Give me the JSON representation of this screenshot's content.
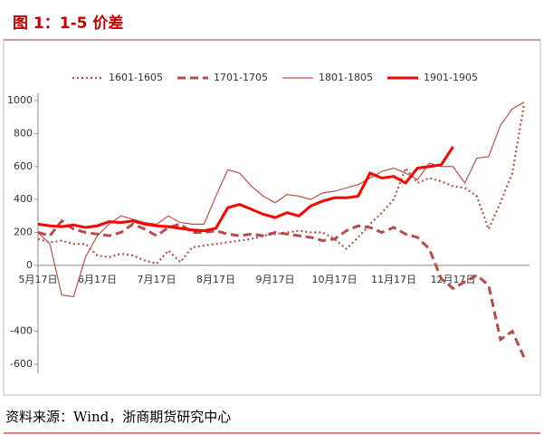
{
  "chart_data": {
    "type": "line",
    "title": "图 1：1-5 价差",
    "source": "资料来源：Wind，浙商期货研究中心",
    "categories": [
      "5月17日",
      null,
      null,
      null,
      null,
      "6月17日",
      null,
      null,
      null,
      null,
      "7月17日",
      null,
      null,
      null,
      null,
      "8月17日",
      null,
      null,
      null,
      null,
      "9月17日",
      null,
      null,
      null,
      null,
      "10月17日",
      null,
      null,
      null,
      null,
      "11月17日",
      null,
      null,
      null,
      null,
      "12月17日",
      null,
      null,
      null,
      null,
      null,
      null
    ],
    "series": [
      {
        "name": "1601-1605",
        "color": "#b5504f",
        "style": "dotted",
        "values": [
          160,
          140,
          150,
          130,
          130,
          60,
          50,
          70,
          60,
          30,
          10,
          90,
          20,
          110,
          120,
          130,
          140,
          150,
          160,
          180,
          190,
          200,
          210,
          200,
          200,
          160,
          100,
          170,
          250,
          320,
          400,
          590,
          500,
          530,
          510,
          480,
          470,
          420,
          220,
          380,
          560,
          980
        ]
      },
      {
        "name": "1701-1705",
        "color": "#b84b4b",
        "style": "dashed",
        "values": [
          200,
          180,
          270,
          220,
          200,
          190,
          180,
          200,
          250,
          220,
          180,
          230,
          250,
          200,
          200,
          210,
          190,
          180,
          190,
          180,
          200,
          190,
          180,
          170,
          150,
          160,
          210,
          240,
          230,
          200,
          230,
          190,
          170,
          100,
          -80,
          -140,
          -100,
          -60,
          -120,
          -450,
          -400,
          -560
        ]
      },
      {
        "name": "1801-1805",
        "color": "#c0504d",
        "style": "solid",
        "values": [
          200,
          130,
          -180,
          -190,
          50,
          180,
          250,
          300,
          280,
          260,
          250,
          300,
          260,
          250,
          250,
          420,
          580,
          560,
          480,
          420,
          380,
          430,
          420,
          400,
          440,
          450,
          470,
          490,
          530,
          570,
          590,
          560,
          520,
          620,
          600,
          600,
          500,
          650,
          660,
          850,
          950,
          990
        ]
      },
      {
        "name": "1901-1905",
        "color": "#ff0000",
        "style": "bold",
        "values": [
          250,
          240,
          235,
          245,
          230,
          240,
          265,
          260,
          270,
          250,
          240,
          235,
          225,
          215,
          210,
          225,
          350,
          370,
          340,
          310,
          290,
          320,
          300,
          360,
          390,
          410,
          410,
          420,
          560,
          530,
          540,
          500,
          590,
          600,
          610,
          720,
          null,
          null,
          null,
          null,
          null,
          null
        ]
      }
    ],
    "ylim": [
      -600,
      1000
    ],
    "yticks": [
      -600,
      -400,
      0,
      200,
      400,
      600,
      800,
      1000
    ]
  }
}
